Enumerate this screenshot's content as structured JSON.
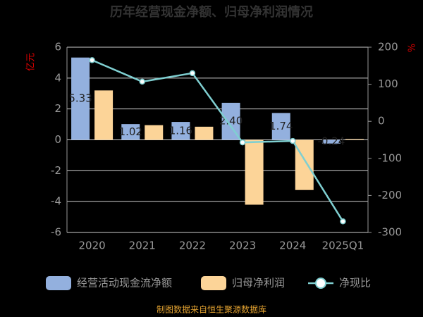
{
  "chart_data": {
    "type": "bar",
    "title": "历年经营现金净额、归母净利润情况",
    "y_label": "亿元",
    "y2_label": "%",
    "categories": [
      "2020",
      "2021",
      "2022",
      "2023",
      "2024",
      "2025Q1"
    ],
    "series": [
      {
        "name": "经营活动现金流净额",
        "color": "#93b0de",
        "type": "bar",
        "values": [
          5.33,
          1.02,
          1.16,
          2.4,
          1.74,
          -0.24
        ],
        "value_labels": [
          "5.33",
          "1.02",
          "1.16",
          "2.40",
          "1.74",
          "-0.24"
        ]
      },
      {
        "name": "归母净利润",
        "color": "#fcd498",
        "type": "bar",
        "values": [
          3.2,
          0.95,
          0.85,
          -4.2,
          -3.25,
          0.05
        ]
      },
      {
        "name": "净现比",
        "color": "#7fcfd1",
        "type": "line",
        "axis": "y2",
        "values": [
          165,
          107,
          130,
          -57,
          -53,
          -270
        ]
      }
    ],
    "ylim": [
      -6,
      6
    ],
    "yticks": [
      -6,
      -4,
      -2,
      0,
      2,
      4,
      6
    ],
    "y2lim": [
      -300,
      200
    ],
    "y2ticks": [
      -300,
      -200,
      -100,
      0,
      100,
      200
    ],
    "grid": true,
    "source": "制图数据来自恒生聚源数据库"
  }
}
